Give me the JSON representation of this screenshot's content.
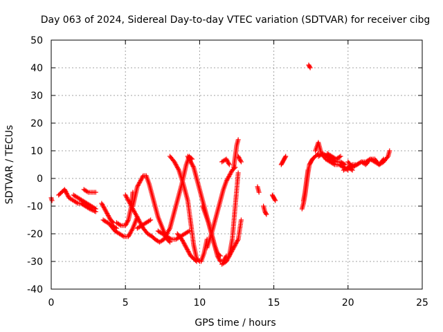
{
  "chart_data": {
    "type": "scatter",
    "title": "Day 063 of 2024, Sidereal Day-to-day VTEC variation (SDTVAR) for receiver cibg",
    "xlabel": "GPS time / hours",
    "ylabel": "SDTVAR / TECUs",
    "xlim": [
      0,
      25
    ],
    "ylim": [
      -40,
      50
    ],
    "xticks": [
      0,
      5,
      10,
      15,
      20,
      25
    ],
    "yticks": [
      -40,
      -30,
      -20,
      -10,
      0,
      10,
      20,
      30,
      40,
      50
    ],
    "grid": true,
    "marker": "plus",
    "color": "#ff0000",
    "series": [
      {
        "name": "s1",
        "x": [
          0.0,
          0.05
        ],
        "y": [
          -7,
          -8
        ]
      },
      {
        "name": "s2",
        "x": [
          0.5,
          0.7,
          0.9,
          1.0,
          1.2,
          1.5,
          1.8,
          2.0,
          2.3,
          2.6,
          3.0
        ],
        "y": [
          -6,
          -5,
          -4,
          -5,
          -7,
          -8,
          -9,
          -9,
          -10,
          -11,
          -12
        ]
      },
      {
        "name": "s3",
        "x": [
          1.5,
          1.8,
          2.1,
          2.4,
          2.7,
          3.0
        ],
        "y": [
          -6,
          -7,
          -8,
          -9,
          -10,
          -11
        ]
      },
      {
        "name": "s4",
        "x": [
          2.2,
          2.5,
          2.8,
          3.0
        ],
        "y": [
          -4,
          -5,
          -5,
          -5
        ]
      },
      {
        "name": "s5",
        "x": [
          3.4,
          3.6,
          3.8,
          4.0,
          4.2
        ],
        "y": [
          -9,
          -11,
          -13,
          -15,
          -16
        ]
      },
      {
        "name": "s6",
        "x": [
          3.5,
          3.8,
          4.1,
          4.4
        ],
        "y": [
          -15,
          -16,
          -17,
          -18
        ]
      },
      {
        "name": "s7",
        "x": [
          4.4,
          4.7,
          5.0,
          5.2,
          5.4,
          5.5
        ],
        "y": [
          -16,
          -17,
          -17,
          -15,
          -10,
          -5
        ]
      },
      {
        "name": "s8",
        "x": [
          4.0,
          4.3,
          4.6,
          4.9,
          5.2,
          5.5,
          5.8
        ],
        "y": [
          -17,
          -19,
          -20,
          -21,
          -21,
          -18,
          -14
        ]
      },
      {
        "name": "s9",
        "x": [
          5.5,
          5.8,
          6.0,
          6.2,
          6.4,
          6.6,
          6.8,
          7.0,
          7.2,
          7.5,
          7.8,
          8.0
        ],
        "y": [
          -10,
          -3,
          -1,
          1,
          1,
          -2,
          -6,
          -10,
          -14,
          -18,
          -22,
          -23
        ]
      },
      {
        "name": "s10",
        "x": [
          5.0,
          5.4,
          5.8,
          6.2,
          6.5,
          6.8,
          7.0,
          7.3,
          7.6,
          8.0,
          8.4,
          8.8,
          9.1,
          9.3,
          9.5
        ],
        "y": [
          -6,
          -10,
          -14,
          -18,
          -20,
          -21,
          -22,
          -23,
          -22,
          -18,
          -10,
          -2,
          5,
          8,
          7
        ]
      },
      {
        "name": "s11",
        "x": [
          5.8,
          6.1,
          6.4,
          6.7
        ],
        "y": [
          -18,
          -17,
          -16,
          -15
        ]
      },
      {
        "name": "s12",
        "x": [
          8.0,
          8.3,
          8.6,
          8.9,
          9.2,
          9.4,
          9.6,
          9.8,
          10.0,
          10.1,
          10.3,
          10.5
        ],
        "y": [
          8,
          6,
          3,
          -2,
          -8,
          -16,
          -24,
          -29,
          -30,
          -30,
          -27,
          -22
        ]
      },
      {
        "name": "s13",
        "x": [
          7.2,
          7.5,
          7.8,
          8.1,
          8.4,
          8.7,
          9.0,
          9.3
        ],
        "y": [
          -19,
          -20,
          -21,
          -22,
          -22,
          -21,
          -20,
          -19
        ]
      },
      {
        "name": "s14",
        "x": [
          8.5,
          8.8,
          9.0,
          9.2,
          9.4,
          9.6,
          9.8
        ],
        "y": [
          -20,
          -22,
          -24,
          -26,
          -28,
          -29,
          -30
        ]
      },
      {
        "name": "s15",
        "x": [
          9.2,
          9.4,
          9.6,
          9.8,
          10.0,
          10.2,
          10.4,
          10.6,
          10.8,
          11.0,
          11.2,
          11.4
        ],
        "y": [
          8,
          6,
          4,
          0,
          -4,
          -8,
          -12,
          -16,
          -20,
          -24,
          -27,
          -28
        ]
      },
      {
        "name": "s16",
        "x": [
          10.2,
          10.4,
          10.6,
          10.8,
          11.0,
          11.2,
          11.4,
          11.6,
          11.8
        ],
        "y": [
          -10,
          -13,
          -16,
          -20,
          -24,
          -28,
          -30,
          -30,
          -28
        ]
      },
      {
        "name": "s17",
        "x": [
          10.5,
          10.8,
          11.0,
          11.2,
          11.4,
          11.6,
          11.8,
          12.0,
          12.2,
          12.4
        ],
        "y": [
          -25,
          -20,
          -16,
          -12,
          -8,
          -4,
          -1,
          1,
          3,
          4
        ]
      },
      {
        "name": "s18",
        "x": [
          11.5,
          11.8,
          12.0,
          12.2,
          12.3,
          12.4,
          12.5,
          12.6
        ],
        "y": [
          -31,
          -30,
          -28,
          -22,
          -16,
          -10,
          -4,
          2
        ]
      },
      {
        "name": "s19",
        "x": [
          12.3,
          12.4,
          12.5,
          12.6
        ],
        "y": [
          4,
          8,
          12,
          14
        ]
      },
      {
        "name": "s20",
        "x": [
          12.0,
          12.2,
          12.4,
          12.6,
          12.8
        ],
        "y": [
          -28,
          -26,
          -24,
          -22,
          -15
        ]
      },
      {
        "name": "s21",
        "x": [
          11.5,
          11.8,
          12.0
        ],
        "y": [
          6,
          7,
          5
        ]
      },
      {
        "name": "s22",
        "x": [
          12.6,
          12.8
        ],
        "y": [
          8,
          6
        ]
      },
      {
        "name": "s23",
        "x": [
          13.9,
          14.0
        ],
        "y": [
          -3,
          -5
        ]
      },
      {
        "name": "s24",
        "x": [
          14.3,
          14.4,
          14.5
        ],
        "y": [
          -10,
          -12,
          -13
        ]
      },
      {
        "name": "s25",
        "x": [
          14.9,
          15.0,
          15.1
        ],
        "y": [
          -6,
          -7,
          -8
        ]
      },
      {
        "name": "s26",
        "x": [
          15.5,
          15.6,
          15.7,
          15.8
        ],
        "y": [
          5,
          6,
          7,
          8
        ]
      },
      {
        "name": "s27",
        "x": [
          16.9,
          17.0,
          17.1,
          17.2,
          17.3,
          17.4,
          17.5,
          17.6,
          17.8,
          18.0
        ],
        "y": [
          -11,
          -9,
          -6,
          -2,
          2,
          5,
          6,
          7,
          8,
          9
        ]
      },
      {
        "name": "s28",
        "x": [
          17.0,
          17.1,
          17.2,
          17.3
        ],
        "y": [
          -8,
          -5,
          -1,
          3
        ]
      },
      {
        "name": "s29",
        "x": [
          17.35,
          17.45
        ],
        "y": [
          41,
          40
        ]
      },
      {
        "name": "s30",
        "x": [
          17.8,
          18.0,
          18.2,
          18.5,
          18.8,
          19.1,
          19.4,
          19.7,
          20.0
        ],
        "y": [
          10,
          13,
          9,
          7,
          6,
          5,
          5,
          4,
          3
        ]
      },
      {
        "name": "s31",
        "x": [
          18.0,
          18.3,
          18.6,
          18.9,
          19.2,
          19.5,
          19.8
        ],
        "y": [
          8,
          9,
          8,
          7,
          6,
          6,
          5
        ]
      },
      {
        "name": "s32",
        "x": [
          18.6,
          18.9,
          19.2,
          19.5
        ],
        "y": [
          9,
          8,
          7,
          8
        ]
      },
      {
        "name": "s33",
        "x": [
          20.0,
          20.3,
          20.6,
          20.9,
          21.2,
          21.5,
          21.8,
          22.1,
          22.4,
          22.7,
          22.8
        ],
        "y": [
          4,
          5,
          5,
          6,
          6,
          7,
          6,
          5,
          6,
          8,
          10
        ]
      },
      {
        "name": "s34",
        "x": [
          20.0,
          20.3,
          20.6,
          20.9,
          21.2,
          21.5,
          21.8,
          22.1,
          22.4
        ],
        "y": [
          6,
          4,
          5,
          6,
          5,
          7,
          7,
          5,
          7
        ]
      },
      {
        "name": "s35",
        "x": [
          19.7,
          20.0,
          20.3
        ],
        "y": [
          3,
          4,
          3
        ]
      }
    ]
  }
}
